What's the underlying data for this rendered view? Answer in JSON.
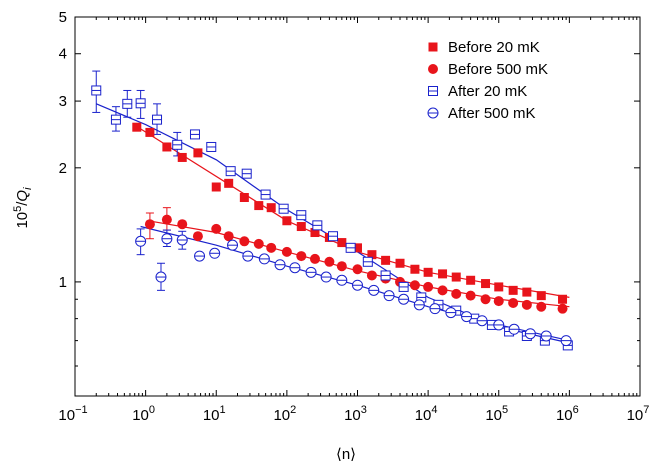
{
  "chart_data": {
    "type": "scatter",
    "title": "",
    "xlabel": "⟨n⟩",
    "ylabel_parts": {
      "base": "10",
      "exp": "5",
      "slash": "/",
      "q": "Q",
      "sub": "i"
    },
    "xscale": "log",
    "yscale": "log",
    "xlim": [
      0.1,
      10000000
    ],
    "ylim": [
      0.5,
      5
    ],
    "x_ticks": [
      {
        "value": 0.1,
        "base": "10",
        "exp": "−1"
      },
      {
        "value": 1,
        "base": "10",
        "exp": "0"
      },
      {
        "value": 10,
        "base": "10",
        "exp": "1"
      },
      {
        "value": 100,
        "base": "10",
        "exp": "2"
      },
      {
        "value": 1000,
        "base": "10",
        "exp": "3"
      },
      {
        "value": 10000,
        "base": "10",
        "exp": "4"
      },
      {
        "value": 100000,
        "base": "10",
        "exp": "5"
      },
      {
        "value": 1000000,
        "base": "10",
        "exp": "6"
      },
      {
        "value": 10000000,
        "base": "10",
        "exp": "7"
      }
    ],
    "y_ticks": [
      {
        "value": 1,
        "label": "1"
      },
      {
        "value": 2,
        "label": "2"
      },
      {
        "value": 3,
        "label": "3"
      },
      {
        "value": 4,
        "label": "4"
      },
      {
        "value": 5,
        "label": "5"
      }
    ],
    "grid": false,
    "legend_position": "top-right",
    "series": [
      {
        "name": "Before 20 mK",
        "marker": "square-filled",
        "color": "#e8141b",
        "points": [
          [
            0.75,
            2.56
          ],
          [
            1.15,
            2.48
          ],
          [
            2.0,
            2.27
          ],
          [
            3.3,
            2.13
          ],
          [
            5.5,
            2.19
          ],
          [
            10,
            1.78
          ],
          [
            15,
            1.82
          ],
          [
            25,
            1.67
          ],
          [
            40,
            1.59
          ],
          [
            60,
            1.57
          ],
          [
            100,
            1.45
          ],
          [
            160,
            1.4
          ],
          [
            250,
            1.35
          ],
          [
            400,
            1.31
          ],
          [
            600,
            1.27
          ],
          [
            1000,
            1.23
          ],
          [
            1600,
            1.18
          ],
          [
            2500,
            1.14
          ],
          [
            4000,
            1.12
          ],
          [
            6500,
            1.08
          ],
          [
            10000,
            1.06
          ],
          [
            16000,
            1.05
          ],
          [
            25000,
            1.03
          ],
          [
            40000,
            1.01
          ],
          [
            65000,
            0.99
          ],
          [
            100000,
            0.97
          ],
          [
            160000,
            0.95
          ],
          [
            250000,
            0.94
          ],
          [
            400000,
            0.92
          ],
          [
            800000,
            0.9
          ]
        ],
        "fit": [
          [
            0.8,
            2.55
          ],
          [
            100,
            1.45
          ],
          [
            1000,
            1.2
          ],
          [
            10000,
            1.06
          ],
          [
            100000,
            0.98
          ],
          [
            1000000,
            0.91
          ]
        ]
      },
      {
        "name": "Before 500 mK",
        "marker": "circle-filled",
        "color": "#e8141b",
        "points": [
          [
            1.15,
            1.42
          ],
          [
            2.0,
            1.46
          ],
          [
            3.3,
            1.42
          ],
          [
            5.5,
            1.32
          ],
          [
            10,
            1.38
          ],
          [
            15,
            1.32
          ],
          [
            25,
            1.28
          ],
          [
            40,
            1.26
          ],
          [
            60,
            1.23
          ],
          [
            100,
            1.2
          ],
          [
            160,
            1.17
          ],
          [
            250,
            1.15
          ],
          [
            400,
            1.13
          ],
          [
            600,
            1.1
          ],
          [
            1000,
            1.08
          ],
          [
            1600,
            1.04
          ],
          [
            2500,
            1.02
          ],
          [
            4000,
            1.0
          ],
          [
            6500,
            0.98
          ],
          [
            10000,
            0.97
          ],
          [
            16000,
            0.95
          ],
          [
            25000,
            0.93
          ],
          [
            40000,
            0.92
          ],
          [
            65000,
            0.9
          ],
          [
            100000,
            0.89
          ],
          [
            160000,
            0.88
          ],
          [
            250000,
            0.87
          ],
          [
            400000,
            0.86
          ],
          [
            800000,
            0.85
          ]
        ],
        "error_bars": [
          [
            1.15,
            1.3,
            1.52
          ],
          [
            2.0,
            1.37,
            1.57
          ]
        ],
        "fit": [
          [
            1.1,
            1.45
          ],
          [
            10,
            1.35
          ],
          [
            100,
            1.2
          ],
          [
            1000,
            1.07
          ],
          [
            10000,
            0.97
          ],
          [
            100000,
            0.9
          ],
          [
            1000000,
            0.86
          ]
        ]
      },
      {
        "name": "After 20 mK",
        "marker": "square-open",
        "color": "#1a22cc",
        "points": [
          [
            0.2,
            3.2
          ],
          [
            0.38,
            2.68
          ],
          [
            0.55,
            2.95
          ],
          [
            0.85,
            2.96
          ],
          [
            1.45,
            2.68
          ],
          [
            2.8,
            2.3
          ],
          [
            5,
            2.45
          ],
          [
            8.5,
            2.27
          ],
          [
            16,
            1.96
          ],
          [
            27,
            1.93
          ],
          [
            50,
            1.7
          ],
          [
            90,
            1.56
          ],
          [
            160,
            1.5
          ],
          [
            270,
            1.41
          ],
          [
            450,
            1.32
          ],
          [
            800,
            1.23
          ],
          [
            1400,
            1.13
          ],
          [
            2500,
            1.04
          ],
          [
            4500,
            0.97
          ],
          [
            8000,
            0.91
          ],
          [
            14000,
            0.87
          ],
          [
            25000,
            0.84
          ],
          [
            45000,
            0.8
          ],
          [
            80000,
            0.77
          ],
          [
            140000,
            0.74
          ],
          [
            250000,
            0.72
          ],
          [
            450000,
            0.7
          ],
          [
            950000,
            0.68
          ]
        ],
        "error_bars": [
          [
            0.2,
            2.8,
            3.6
          ],
          [
            0.38,
            2.5,
            2.9
          ],
          [
            0.55,
            2.72,
            3.2
          ],
          [
            0.85,
            2.7,
            3.2
          ],
          [
            1.45,
            2.45,
            2.95
          ],
          [
            2.8,
            2.15,
            2.48
          ]
        ],
        "fit": [
          [
            0.2,
            2.95
          ],
          [
            1,
            2.6
          ],
          [
            10,
            2.1
          ],
          [
            100,
            1.55
          ],
          [
            1000,
            1.2
          ],
          [
            10000,
            0.91
          ],
          [
            100000,
            0.76
          ],
          [
            1000000,
            0.69
          ]
        ]
      },
      {
        "name": "After 500 mK",
        "marker": "circle-open",
        "color": "#1a22cc",
        "points": [
          [
            0.85,
            1.28
          ],
          [
            1.65,
            1.03
          ],
          [
            2.0,
            1.3
          ],
          [
            3.3,
            1.29
          ],
          [
            5.8,
            1.17
          ],
          [
            9.5,
            1.19
          ],
          [
            17,
            1.25
          ],
          [
            28,
            1.17
          ],
          [
            48,
            1.15
          ],
          [
            80,
            1.11
          ],
          [
            130,
            1.09
          ],
          [
            220,
            1.06
          ],
          [
            360,
            1.03
          ],
          [
            600,
            1.01
          ],
          [
            1000,
            0.98
          ],
          [
            1700,
            0.95
          ],
          [
            2800,
            0.92
          ],
          [
            4500,
            0.9
          ],
          [
            7500,
            0.87
          ],
          [
            12500,
            0.85
          ],
          [
            21000,
            0.83
          ],
          [
            35000,
            0.81
          ],
          [
            58000,
            0.79
          ],
          [
            100000,
            0.77
          ],
          [
            165000,
            0.75
          ],
          [
            280000,
            0.73
          ],
          [
            470000,
            0.72
          ],
          [
            900000,
            0.7
          ]
        ],
        "error_bars": [
          [
            0.85,
            1.18,
            1.38
          ],
          [
            1.65,
            0.95,
            1.12
          ],
          [
            2.0,
            1.24,
            1.37
          ],
          [
            3.3,
            1.22,
            1.36
          ]
        ],
        "fit": [
          [
            0.85,
            1.4
          ],
          [
            10,
            1.25
          ],
          [
            100,
            1.1
          ],
          [
            1000,
            0.98
          ],
          [
            10000,
            0.86
          ],
          [
            100000,
            0.77
          ],
          [
            1000000,
            0.7
          ]
        ]
      }
    ]
  }
}
